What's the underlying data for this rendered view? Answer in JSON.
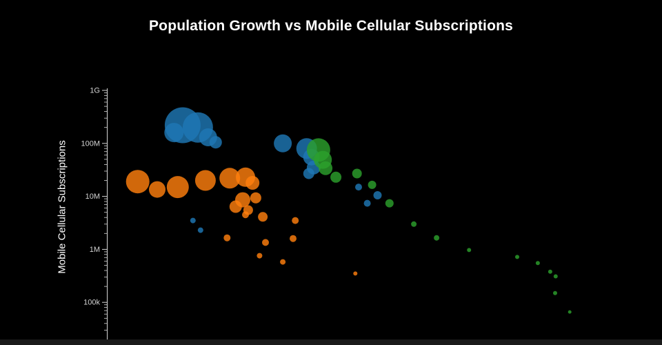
{
  "colors": {
    "background": "#000000",
    "axis": "#d8d8d8",
    "tick_text": "#d4d4d4",
    "title_text": "#ffffff",
    "footer": "#1a1a1a",
    "series_blue": "#1f77b4",
    "series_orange": "#ff7f0e",
    "series_green": "#2ca02c"
  },
  "chart_data": {
    "type": "scatter",
    "title": "Population Growth vs Mobile Cellular Subscriptions",
    "xlabel": "",
    "ylabel": "Mobile Cellular Subscriptions",
    "y_scale": "log",
    "ylim": [
      20000,
      1000000000
    ],
    "xlim": [
      0,
      1
    ],
    "grid": false,
    "legend_position": "none",
    "point_opacity": 0.82,
    "point_format": [
      "x_fraction_of_plot_width",
      "subscriptions",
      "bubble_radius_px"
    ],
    "yticks": [
      {
        "label": "1G",
        "value": 1000000000.0
      },
      {
        "label": "100M",
        "value": 100000000.0
      },
      {
        "label": "10M",
        "value": 10000000.0
      },
      {
        "label": "1M",
        "value": 1000000.0
      },
      {
        "label": "100k",
        "value": 100000.0
      }
    ],
    "series": [
      {
        "name": "series-1-blue",
        "color": "#1f77b4",
        "points": [
          [
            0.14,
            220000000.0,
            26
          ],
          [
            0.168,
            200000000.0,
            22
          ],
          [
            0.124,
            160000000.0,
            14
          ],
          [
            0.187,
            130000000.0,
            13
          ],
          [
            0.201,
            105000000.0,
            9
          ],
          [
            0.325,
            100000000.0,
            13
          ],
          [
            0.369,
            80000000.0,
            15
          ],
          [
            0.378,
            55000000.0,
            12
          ],
          [
            0.382,
            35000000.0,
            10
          ],
          [
            0.373,
            27000000.0,
            8
          ],
          [
            0.465,
            15000000.0,
            5
          ],
          [
            0.5,
            10500000.0,
            6
          ],
          [
            0.481,
            7400000.0,
            5
          ],
          [
            0.159,
            3500000.0,
            4
          ],
          [
            0.173,
            2300000.0,
            4
          ]
        ]
      },
      {
        "name": "series-2-orange",
        "color": "#ff7f0e",
        "points": [
          [
            0.057,
            19000000.0,
            17
          ],
          [
            0.093,
            13500000.0,
            12
          ],
          [
            0.131,
            15000000.0,
            16
          ],
          [
            0.182,
            20000000.0,
            15
          ],
          [
            0.227,
            22000000.0,
            15
          ],
          [
            0.256,
            23000000.0,
            14
          ],
          [
            0.269,
            18000000.0,
            10
          ],
          [
            0.251,
            8600000.0,
            11
          ],
          [
            0.275,
            9400000.0,
            8
          ],
          [
            0.238,
            6400000.0,
            9
          ],
          [
            0.261,
            5500000.0,
            7
          ],
          [
            0.288,
            4100000.0,
            7
          ],
          [
            0.256,
            4500000.0,
            5
          ],
          [
            0.348,
            3500000.0,
            5
          ],
          [
            0.222,
            1650000.0,
            5
          ],
          [
            0.293,
            1350000.0,
            5
          ],
          [
            0.344,
            1600000.0,
            5
          ],
          [
            0.282,
            760000.0,
            4
          ],
          [
            0.325,
            580000.0,
            4
          ],
          [
            0.459,
            350000.0,
            3
          ]
        ]
      },
      {
        "name": "series-3-green",
        "color": "#2ca02c",
        "points": [
          [
            0.391,
            75000000.0,
            17
          ],
          [
            0.399,
            49000000.0,
            13
          ],
          [
            0.404,
            34000000.0,
            10
          ],
          [
            0.423,
            23000000.0,
            8
          ],
          [
            0.462,
            27000000.0,
            7
          ],
          [
            0.49,
            16500000.0,
            6
          ],
          [
            0.522,
            7400000.0,
            6
          ],
          [
            0.567,
            3000000.0,
            4
          ],
          [
            0.609,
            1650000.0,
            4
          ],
          [
            0.669,
            970000.0,
            3
          ],
          [
            0.758,
            720000.0,
            3
          ],
          [
            0.796,
            550000.0,
            3
          ],
          [
            0.819,
            380000.0,
            3
          ],
          [
            0.829,
            310000.0,
            3
          ],
          [
            0.828,
            150000.0,
            3
          ],
          [
            0.855,
            66000.0,
            2.5
          ]
        ]
      }
    ]
  }
}
